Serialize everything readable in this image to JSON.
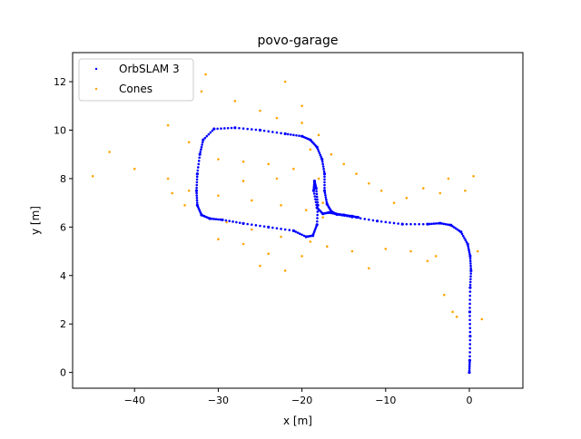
{
  "chart_data": {
    "type": "scatter",
    "title": "povo-garage",
    "xlabel": "x [m]",
    "ylabel": "y [m]",
    "xlim": [
      -47.4,
      6.4
    ],
    "ylim": [
      -0.65,
      13.2
    ],
    "xticks": [
      -40,
      -30,
      -20,
      -10,
      0
    ],
    "yticks": [
      0,
      2,
      4,
      6,
      8,
      10,
      12
    ],
    "grid": false,
    "legend_position": "top-left",
    "series": [
      {
        "name": "OrbSLAM 3",
        "color": "#0000ff",
        "marker": "point",
        "x": [
          0.0,
          0.05,
          0.1,
          0.05,
          0.1,
          0.2,
          0.1,
          -0.2,
          -1.0,
          -2.2,
          -3.5,
          -5.0,
          -8.0,
          -11.0,
          -14.0,
          -15.8,
          -16.5,
          -17.0,
          -17.3,
          -17.3,
          -17.6,
          -18.2,
          -19.0,
          -20.0,
          -22.0,
          -25.0,
          -28.0,
          -30.5,
          -31.8,
          -32.2,
          -32.5,
          -32.6,
          -32.5,
          -32.0,
          -31.0,
          -29.5,
          -27.0,
          -24.0,
          -21.0,
          -19.5,
          -18.7,
          -18.2,
          -18.1,
          -18.3,
          -18.5,
          -18.6,
          -18.2,
          -17.5,
          -16.8,
          -16.0,
          -15.0,
          -14.0,
          -13.3
        ],
        "y": [
          0.0,
          0.5,
          1.5,
          2.5,
          3.5,
          4.2,
          4.8,
          5.3,
          5.8,
          6.08,
          6.16,
          6.12,
          6.12,
          6.25,
          6.42,
          6.52,
          6.65,
          6.95,
          7.5,
          8.2,
          8.8,
          9.3,
          9.6,
          9.75,
          9.85,
          10.0,
          10.1,
          10.05,
          9.6,
          9.0,
          8.2,
          7.5,
          6.9,
          6.5,
          6.35,
          6.3,
          6.15,
          6.0,
          5.85,
          5.6,
          5.65,
          6.1,
          6.9,
          7.6,
          7.9,
          7.5,
          6.8,
          6.55,
          6.6,
          6.55,
          6.5,
          6.45,
          6.4
        ]
      },
      {
        "name": "Cones",
        "color": "#ffa500",
        "marker": "point",
        "x": [
          -32.0,
          -28.0,
          -25.0,
          -23.0,
          -20.0,
          -19.0,
          -36.0,
          -33.5,
          -30.0,
          -27.0,
          -24.0,
          -21.0,
          -18.0,
          -33.5,
          -30.0,
          -26.0,
          -22.5,
          -19.5,
          -17.5,
          -32.0,
          -29.0,
          -26.0,
          -22.5,
          -19.0,
          -30.0,
          -27.0,
          -24.0,
          -20.0,
          -17.0,
          -14.0,
          -10.0,
          -7.0,
          -4.0,
          -25.0,
          -22.0,
          -12.0,
          -5.0,
          -3.0,
          -2.0,
          -1.5,
          1.0,
          1.5,
          -45.0,
          -43.0,
          -40.0,
          -36.0,
          -35.5,
          -34.0,
          -22.0,
          -20.0,
          -18.0,
          -16.5,
          -15.0,
          -13.5,
          -12.0,
          -10.5,
          -9.0,
          -7.5,
          -5.5,
          -3.5,
          -2.5,
          -0.5,
          0.5,
          -31.5,
          -17.5,
          -23.0,
          -27.0
        ],
        "y": [
          11.6,
          11.2,
          10.8,
          10.5,
          10.3,
          9.2,
          10.2,
          9.5,
          8.8,
          8.7,
          8.6,
          8.4,
          8.0,
          7.5,
          7.3,
          7.1,
          6.9,
          6.7,
          6.4,
          6.5,
          6.2,
          5.9,
          5.6,
          5.4,
          5.5,
          5.3,
          4.9,
          4.8,
          5.2,
          5.0,
          5.1,
          5.0,
          4.8,
          4.4,
          4.2,
          4.3,
          4.6,
          3.2,
          2.5,
          2.3,
          5.0,
          2.2,
          8.1,
          9.1,
          8.4,
          8.0,
          7.4,
          6.9,
          12.0,
          11.0,
          9.8,
          9.0,
          8.6,
          8.2,
          7.8,
          7.5,
          7.0,
          7.2,
          7.6,
          7.4,
          8.0,
          7.5,
          8.1,
          12.3,
          7.0,
          8.0,
          7.9
        ]
      }
    ]
  }
}
